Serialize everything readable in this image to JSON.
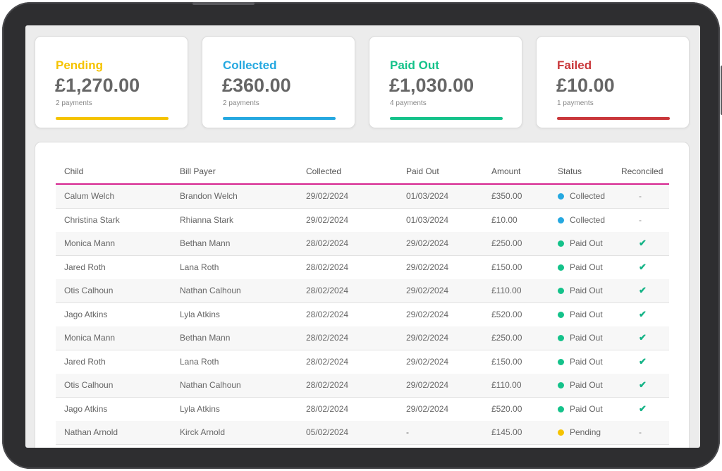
{
  "colors": {
    "pending": "#f5c300",
    "collected": "#25a8e0",
    "paid_out": "#14c28a",
    "failed": "#c9373a",
    "accent_line": "#d6248f",
    "check": "#14b386"
  },
  "summary": [
    {
      "title": "Pending",
      "amount": "£1,270.00",
      "count": "2 payments",
      "color": "#f5c300"
    },
    {
      "title": "Collected",
      "amount": "£360.00",
      "count": "2 payments",
      "color": "#25a8e0"
    },
    {
      "title": "Paid Out",
      "amount": "£1,030.00",
      "count": "4 payments",
      "color": "#14c28a"
    },
    {
      "title": "Failed",
      "amount": "£10.00",
      "count": "1 payments",
      "color": "#c9373a"
    }
  ],
  "table": {
    "headers": [
      "Child",
      "Bill Payer",
      "Collected",
      "Paid Out",
      "Amount",
      "Status",
      "Reconciled"
    ],
    "rows": [
      {
        "child": "Calum Welch",
        "payer": "Brandon Welch",
        "collected": "29/02/2024",
        "paid_out": "01/03/2024",
        "amount": "£350.00",
        "status": "Collected",
        "reconciled": "-"
      },
      {
        "child": "Christina Stark",
        "payer": "Rhianna Stark",
        "collected": "29/02/2024",
        "paid_out": "01/03/2024",
        "amount": "£10.00",
        "status": "Collected",
        "reconciled": "-"
      },
      {
        "child": "Monica Mann",
        "payer": "Bethan Mann",
        "collected": "28/02/2024",
        "paid_out": "29/02/2024",
        "amount": "£250.00",
        "status": "Paid Out",
        "reconciled": "check"
      },
      {
        "child": "Jared Roth",
        "payer": "Lana Roth",
        "collected": "28/02/2024",
        "paid_out": "29/02/2024",
        "amount": "£150.00",
        "status": "Paid Out",
        "reconciled": "check"
      },
      {
        "child": "Otis Calhoun",
        "payer": "Nathan Calhoun",
        "collected": "28/02/2024",
        "paid_out": "29/02/2024",
        "amount": "£110.00",
        "status": "Paid Out",
        "reconciled": "check"
      },
      {
        "child": "Jago Atkins",
        "payer": "Lyla Atkins",
        "collected": "28/02/2024",
        "paid_out": "29/02/2024",
        "amount": "£520.00",
        "status": "Paid Out",
        "reconciled": "check"
      },
      {
        "child": "Monica Mann",
        "payer": "Bethan Mann",
        "collected": "28/02/2024",
        "paid_out": "29/02/2024",
        "amount": "£250.00",
        "status": "Paid Out",
        "reconciled": "check"
      },
      {
        "child": "Jared Roth",
        "payer": "Lana Roth",
        "collected": "28/02/2024",
        "paid_out": "29/02/2024",
        "amount": "£150.00",
        "status": "Paid Out",
        "reconciled": "check"
      },
      {
        "child": "Otis Calhoun",
        "payer": "Nathan Calhoun",
        "collected": "28/02/2024",
        "paid_out": "29/02/2024",
        "amount": "£110.00",
        "status": "Paid Out",
        "reconciled": "check"
      },
      {
        "child": "Jago Atkins",
        "payer": "Lyla Atkins",
        "collected": "28/02/2024",
        "paid_out": "29/02/2024",
        "amount": "£520.00",
        "status": "Paid Out",
        "reconciled": "check"
      },
      {
        "child": "Nathan Arnold",
        "payer": "Kirck Arnold",
        "collected": "05/02/2024",
        "paid_out": "-",
        "amount": "£145.00",
        "status": "Pending",
        "reconciled": "-"
      }
    ]
  }
}
